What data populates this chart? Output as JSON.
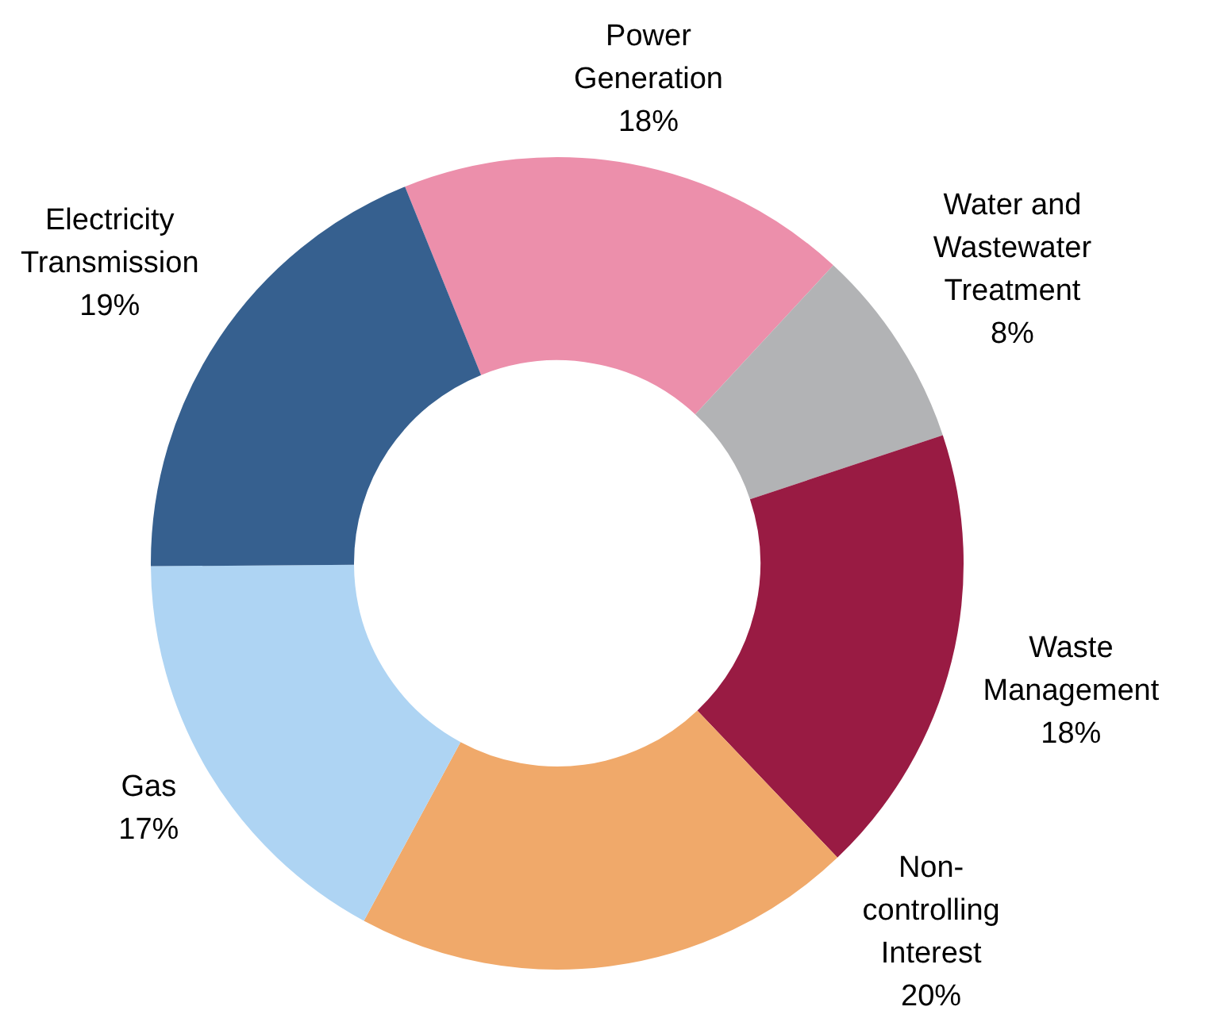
{
  "chart_data": {
    "type": "donut",
    "categories": [
      "Power Generation",
      "Water and Wastewater Treatment",
      "Waste Management",
      "Non-controlling Interest",
      "Gas",
      "Electricity Transmission"
    ],
    "values": [
      18,
      8,
      18,
      20,
      17,
      19
    ],
    "value_labels": [
      "18%",
      "8%",
      "18%",
      "20%",
      "17%",
      "19%"
    ],
    "colors": [
      "#ec8fab",
      "#b2b3b5",
      "#991b43",
      "#f0a96a",
      "#aed4f3",
      "#36608f"
    ],
    "legend": false
  }
}
